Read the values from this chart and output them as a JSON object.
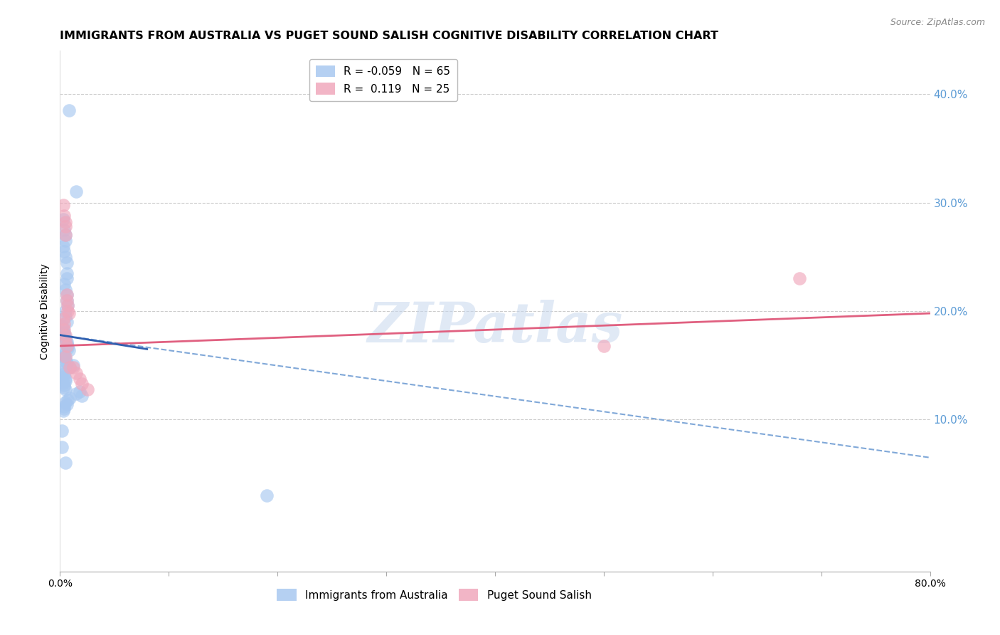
{
  "title": "IMMIGRANTS FROM AUSTRALIA VS PUGET SOUND SALISH COGNITIVE DISABILITY CORRELATION CHART",
  "source": "Source: ZipAtlas.com",
  "ylabel": "Cognitive Disability",
  "right_ytick_labels": [
    "10.0%",
    "20.0%",
    "30.0%",
    "40.0%"
  ],
  "right_ytick_values": [
    0.1,
    0.2,
    0.3,
    0.4
  ],
  "xlim": [
    0.0,
    0.8
  ],
  "ylim": [
    -0.04,
    0.44
  ],
  "xtick_bottom_labels": [
    "0.0%",
    "80.0%"
  ],
  "xtick_bottom_values": [
    0.0,
    0.8
  ],
  "legend_label1": "R = -0.059   N = 65",
  "legend_label2": "R =  0.119   N = 25",
  "blue_color": "#a8c8f0",
  "pink_color": "#f0a8bc",
  "line_blue_solid_color": "#3060b0",
  "line_blue_dash_color": "#80a8d8",
  "line_pink_color": "#e06080",
  "watermark": "ZIPatlas",
  "blue_scatter_x": [
    0.008,
    0.015,
    0.003,
    0.004,
    0.005,
    0.005,
    0.003,
    0.004,
    0.005,
    0.006,
    0.006,
    0.006,
    0.004,
    0.005,
    0.006,
    0.006,
    0.007,
    0.005,
    0.005,
    0.006,
    0.002,
    0.003,
    0.003,
    0.004,
    0.004,
    0.005,
    0.005,
    0.006,
    0.006,
    0.007,
    0.007,
    0.008,
    0.003,
    0.004,
    0.004,
    0.005,
    0.005,
    0.006,
    0.012,
    0.009,
    0.003,
    0.002,
    0.004,
    0.004,
    0.005,
    0.005,
    0.003,
    0.004,
    0.004,
    0.005,
    0.018,
    0.015,
    0.02,
    0.009,
    0.007,
    0.005,
    0.006,
    0.004,
    0.004,
    0.003,
    0.002,
    0.002,
    0.005,
    0.19,
    0.004
  ],
  "blue_scatter_y": [
    0.385,
    0.31,
    0.285,
    0.275,
    0.27,
    0.265,
    0.26,
    0.255,
    0.25,
    0.245,
    0.235,
    0.23,
    0.225,
    0.22,
    0.215,
    0.21,
    0.205,
    0.2,
    0.195,
    0.19,
    0.186,
    0.184,
    0.182,
    0.18,
    0.178,
    0.176,
    0.174,
    0.172,
    0.17,
    0.168,
    0.166,
    0.164,
    0.162,
    0.16,
    0.158,
    0.156,
    0.154,
    0.152,
    0.15,
    0.148,
    0.146,
    0.144,
    0.142,
    0.14,
    0.138,
    0.136,
    0.134,
    0.132,
    0.13,
    0.128,
    0.126,
    0.124,
    0.122,
    0.12,
    0.118,
    0.116,
    0.114,
    0.112,
    0.11,
    0.108,
    0.09,
    0.075,
    0.06,
    0.03,
    0.18
  ],
  "pink_scatter_x": [
    0.003,
    0.004,
    0.005,
    0.005,
    0.005,
    0.006,
    0.006,
    0.007,
    0.007,
    0.008,
    0.003,
    0.004,
    0.004,
    0.005,
    0.005,
    0.006,
    0.009,
    0.012,
    0.015,
    0.018,
    0.02,
    0.025,
    0.68,
    0.5,
    0.005
  ],
  "pink_scatter_y": [
    0.298,
    0.288,
    0.282,
    0.278,
    0.27,
    0.215,
    0.21,
    0.205,
    0.2,
    0.198,
    0.193,
    0.188,
    0.183,
    0.178,
    0.173,
    0.168,
    0.148,
    0.148,
    0.143,
    0.138,
    0.133,
    0.128,
    0.23,
    0.168,
    0.158
  ],
  "blue_solid_trend_x": [
    0.0,
    0.08
  ],
  "blue_solid_trend_y": [
    0.178,
    0.165
  ],
  "blue_dash_trend_x": [
    0.0,
    0.8
  ],
  "blue_dash_trend_y": [
    0.178,
    0.065
  ],
  "pink_trend_x": [
    0.0,
    0.8
  ],
  "pink_trend_y": [
    0.168,
    0.198
  ],
  "grid_color": "#cccccc",
  "background_color": "#ffffff",
  "right_axis_color": "#5b9bd5",
  "title_fontsize": 11.5,
  "axis_label_fontsize": 10
}
